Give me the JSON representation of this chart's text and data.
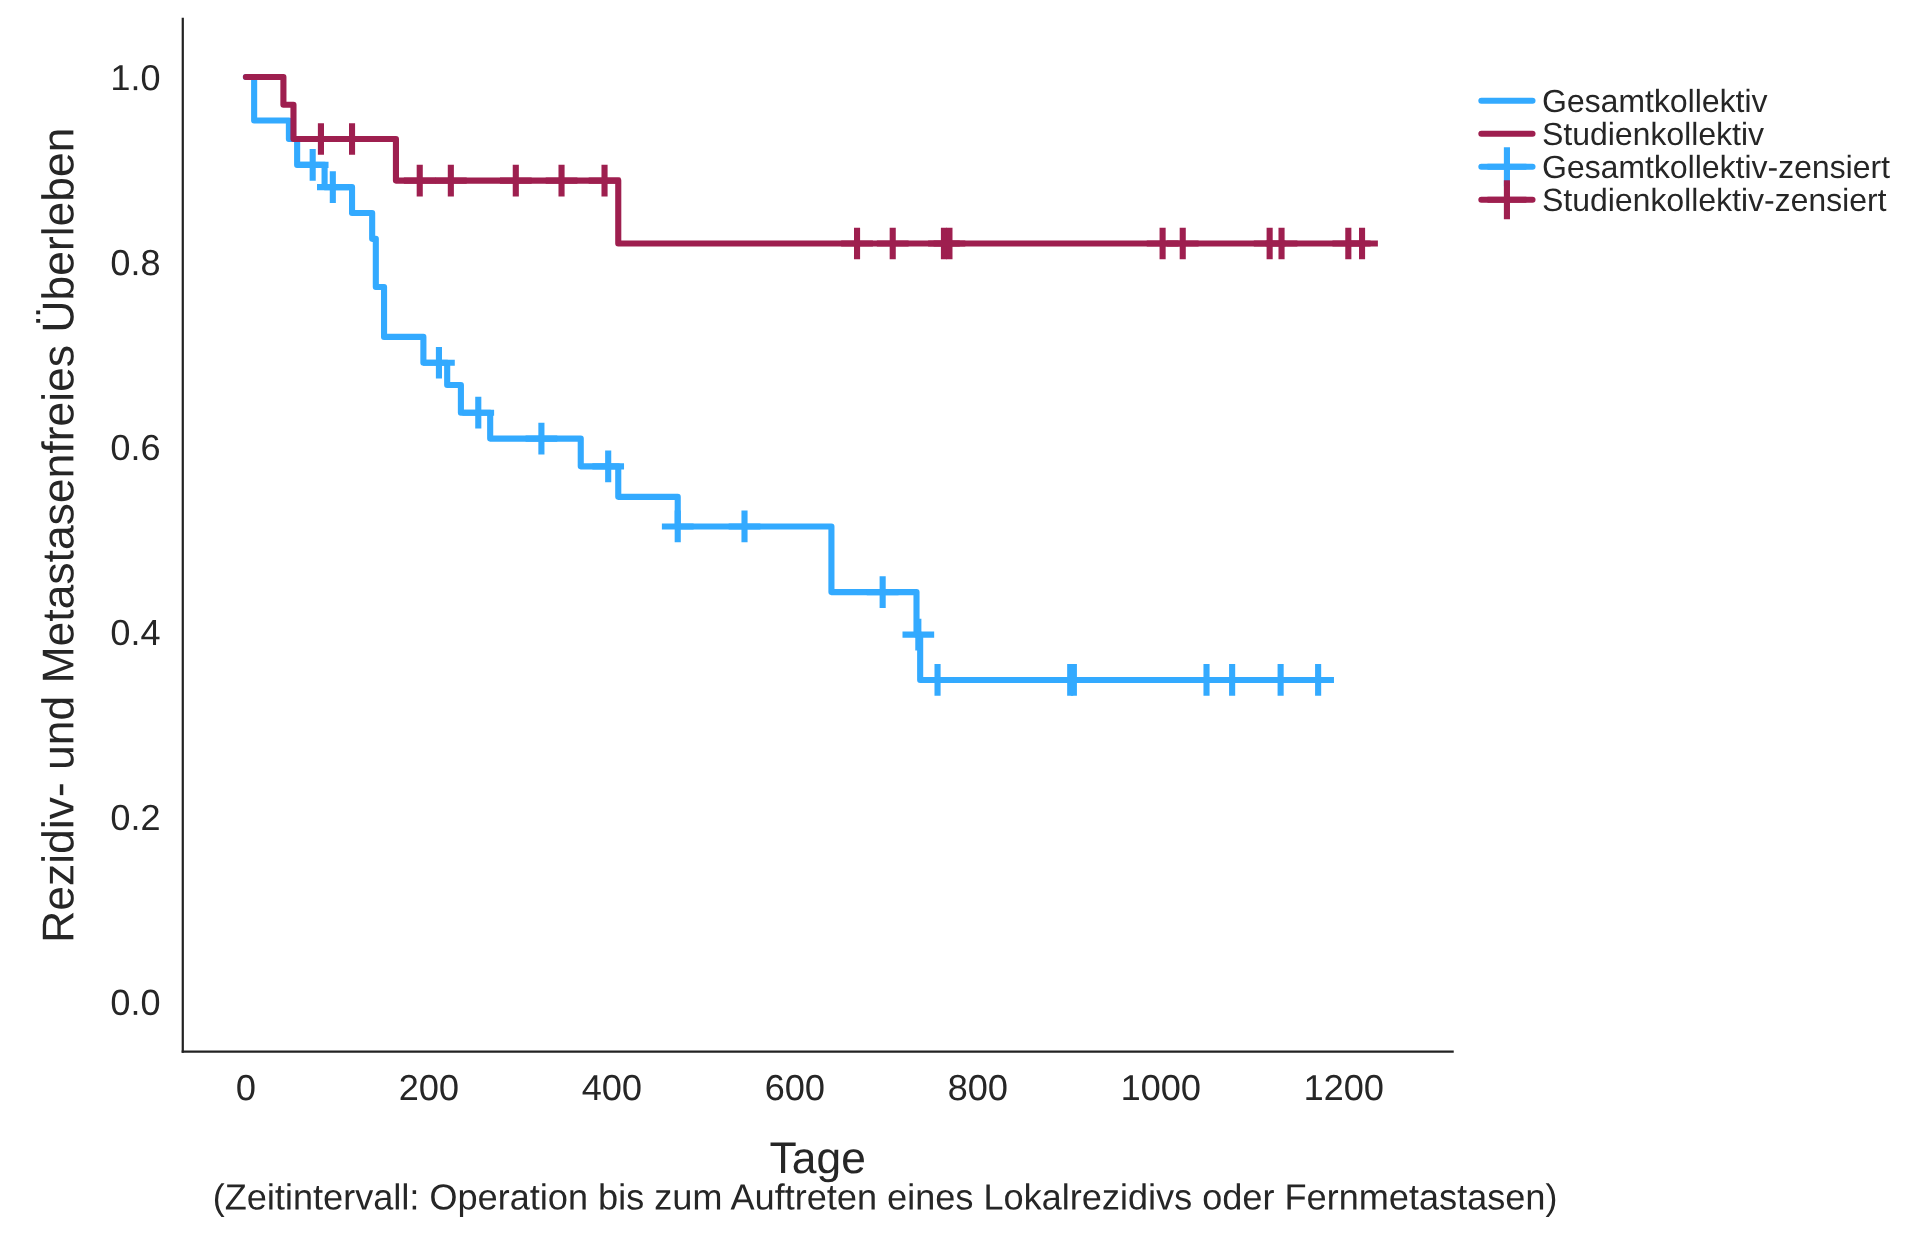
{
  "chart_data": {
    "type": "step",
    "xlabel": "Tage",
    "ylabel": "Rezidiv- und Metastasenfreies Überleben",
    "annotations": [
      "(Zeitintervall: Operation bis zum Auftreten eines Lokalrezidivs oder Fernmetastasen)"
    ],
    "xlim": [
      -69,
      1319
    ],
    "ylim": [
      -0.054,
      1.063
    ],
    "xticks": [
      0,
      200,
      400,
      600,
      800,
      1000,
      1200
    ],
    "yticks": [
      {
        "value": 0,
        "label": "0.0"
      },
      {
        "value": 0.2,
        "label": "0.2"
      },
      {
        "value": 0.4,
        "label": "0.4"
      },
      {
        "value": 0.6,
        "label": "0.6"
      },
      {
        "value": 0.8,
        "label": "0.8"
      },
      {
        "value": 1,
        "label": "1.0"
      }
    ],
    "grid": false,
    "legend": "top right",
    "line_style": "solid",
    "series": [
      {
        "name": "Gesamtkollektiv",
        "color": "#33aaff",
        "x": [
          0,
          9,
          47,
          56,
          86,
          116,
          138,
          142,
          151,
          194,
          220,
          235,
          267,
          366,
          407,
          472,
          640,
          733,
          737,
          1180
        ],
        "values": [
          1.0,
          0.953,
          0.933,
          0.905,
          0.881,
          0.853,
          0.825,
          0.773,
          0.719,
          0.691,
          0.667,
          0.637,
          0.609,
          0.579,
          0.546,
          0.514,
          0.443,
          0.397,
          0.348,
          0.348
        ]
      },
      {
        "name": "Studienkollektiv",
        "color": "#9e1f4f",
        "x": [
          0,
          41,
          52,
          164,
          407,
          1228
        ],
        "values": [
          1.0,
          0.97,
          0.933,
          0.888,
          0.82,
          0.82
        ]
      },
      {
        "name": "Gesamtkollektiv-zensiert",
        "type": "scatter",
        "marker": "cross",
        "color": "#33aaff",
        "x": [
          73,
          95,
          211,
          254,
          323,
          396,
          472,
          545,
          696,
          735,
          756,
          901,
          905,
          1050,
          1078,
          1131,
          1172
        ],
        "values": [
          0.905,
          0.881,
          0.691,
          0.637,
          0.609,
          0.579,
          0.514,
          0.514,
          0.443,
          0.397,
          0.348,
          0.348,
          0.348,
          0.348,
          0.348,
          0.348,
          0.348
        ]
      },
      {
        "name": "Studienkollektiv-zensiert",
        "type": "scatter",
        "marker": "cross",
        "color": "#9e1f4f",
        "x": [
          82,
          116,
          190,
          224,
          295,
          345,
          392,
          668,
          707,
          763,
          769,
          1002,
          1024,
          1119,
          1132,
          1205,
          1220
        ],
        "values": [
          0.933,
          0.933,
          0.888,
          0.888,
          0.888,
          0.888,
          0.888,
          0.82,
          0.82,
          0.82,
          0.82,
          0.82,
          0.82,
          0.82,
          0.82,
          0.82,
          0.82
        ]
      }
    ]
  }
}
